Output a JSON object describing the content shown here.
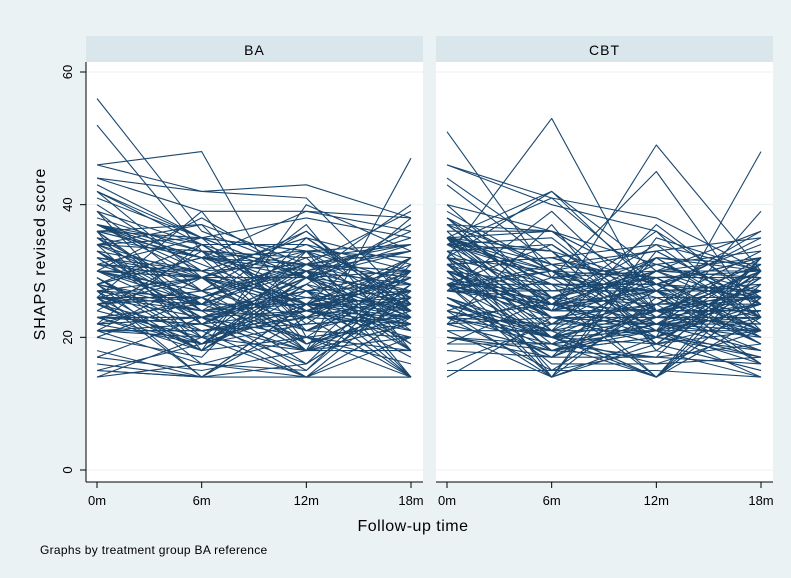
{
  "figure": {
    "note": "Graphs by treatment group BA reference",
    "colors": {
      "background": "#eaf2f3",
      "plot_background": "#ffffff",
      "strip": "#d9e6eb",
      "gridline": "#eaf2f3",
      "line": "#1a476f"
    }
  },
  "chart_data": {
    "type": "line",
    "xlabel": "Follow-up time",
    "ylabel": "SHAPS revised score",
    "x": [
      0,
      6,
      12,
      18
    ],
    "x_tick_labels": [
      "0m",
      "6m",
      "12m",
      "18m"
    ],
    "y_ticks": [
      0,
      20,
      40,
      60
    ],
    "ylim": [
      0,
      60
    ],
    "xlim": [
      0,
      18
    ],
    "grid": true,
    "legend": "none",
    "panels": [
      {
        "title": "BA",
        "y_range_observed": [
          14,
          56
        ],
        "means_approx": [
          30,
          27,
          26,
          25
        ],
        "series_count": 120,
        "example_series": [
          {
            "values": [
              56,
              36,
              30,
              28
            ]
          },
          {
            "values": [
              46,
              48,
              20,
              16
            ]
          },
          {
            "values": [
              44,
              42,
              43,
              38
            ]
          },
          {
            "values": [
              14,
              16,
              14,
              14
            ]
          },
          {
            "values": [
              30,
              26,
              18,
              47
            ]
          }
        ]
      },
      {
        "title": "CBT",
        "y_range_observed": [
          14,
          53
        ],
        "means_approx": [
          30,
          26,
          25,
          25
        ],
        "series_count": 120,
        "example_series": [
          {
            "values": [
              32,
              53,
              24,
              30
            ]
          },
          {
            "values": [
              46,
              41,
              38,
              30
            ]
          },
          {
            "values": [
              15,
              15,
              15,
              14
            ]
          },
          {
            "values": [
              28,
              24,
              49,
              30
            ]
          },
          {
            "values": [
              26,
              18,
              20,
              48
            ]
          }
        ]
      }
    ]
  }
}
